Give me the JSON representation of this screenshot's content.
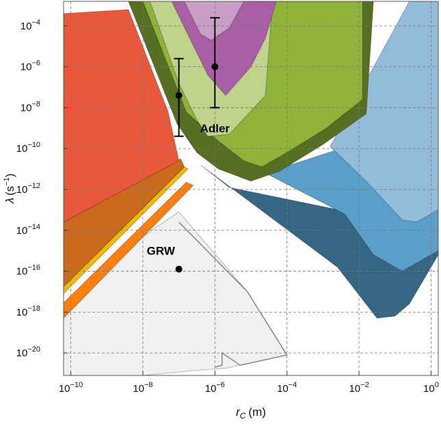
{
  "chart_data": {
    "type": "area",
    "xlabel": {
      "symbol": "r",
      "subscript": "C",
      "unit": "(m)"
    },
    "ylabel": {
      "symbol": "λ",
      "unit_open": "(s",
      "unit_exp": "−1",
      "unit_close": ")"
    },
    "x_scale": "log",
    "y_scale": "log",
    "xlim_exponents": [
      -10.2,
      0.2
    ],
    "ylim_exponents": [
      -21.1,
      -2.8
    ],
    "grid": true,
    "x_ticks": [
      {
        "base": "10",
        "exp": "−10",
        "log": -10
      },
      {
        "base": "10",
        "exp": "−8",
        "log": -8
      },
      {
        "base": "10",
        "exp": "−6",
        "log": -6
      },
      {
        "base": "10",
        "exp": "−4",
        "log": -4
      },
      {
        "base": "10",
        "exp": "−2",
        "log": -2
      },
      {
        "base": "10",
        "exp": "0",
        "log": 0
      }
    ],
    "y_ticks": [
      {
        "base": "10",
        "exp": "−4",
        "log": -4
      },
      {
        "base": "10",
        "exp": "−6",
        "log": -6
      },
      {
        "base": "10",
        "exp": "−8",
        "log": -8
      },
      {
        "base": "10",
        "exp": "−10",
        "log": -10
      },
      {
        "base": "10",
        "exp": "−12",
        "log": -12
      },
      {
        "base": "10",
        "exp": "−14",
        "log": -14
      },
      {
        "base": "10",
        "exp": "−16",
        "log": -16
      },
      {
        "base": "10",
        "exp": "−18",
        "log": -18
      },
      {
        "base": "10",
        "exp": "−20",
        "log": -20
      }
    ],
    "regions": [
      {
        "color": "#f0f0f0",
        "points": [
          [
            -10.2,
            -17.55
          ],
          [
            -8.5,
            -14.9
          ],
          [
            -7.0,
            -13.1
          ],
          [
            -5.1,
            -17.0
          ],
          [
            -4.0,
            -20.1
          ],
          [
            -5.7,
            -20.75
          ],
          [
            -6.5,
            -20.85
          ],
          [
            -8,
            -21.1
          ],
          [
            -10.2,
            -21.1
          ]
        ]
      },
      {
        "color": "#ff7f0e",
        "points": [
          [
            -10.2,
            -17.55
          ],
          [
            -6.8,
            -11.65
          ],
          [
            -6.6,
            -11.8
          ],
          [
            -10.2,
            -18.3
          ]
        ]
      },
      {
        "color": "#f2b705",
        "points": [
          [
            -10.2,
            -16.75
          ],
          [
            -6.85,
            -10.9
          ],
          [
            -6.75,
            -11.0
          ],
          [
            -10.2,
            -17.1
          ]
        ]
      },
      {
        "color": "#c96a1c",
        "points": [
          [
            -10.2,
            -16.75
          ],
          [
            -6.85,
            -10.9
          ],
          [
            -6.95,
            -10.5
          ],
          [
            -10.2,
            -13.6
          ]
        ]
      },
      {
        "color": "#e8583a",
        "points": [
          [
            -10.2,
            -13.6
          ],
          [
            -7.0,
            -10.6
          ],
          [
            -7.3,
            -8.2
          ],
          [
            -8.4,
            -3.2
          ],
          [
            -10.2,
            -3.4
          ]
        ]
      },
      {
        "color": "#356785",
        "points": [
          [
            -6.4,
            -10.8
          ],
          [
            -2.6,
            -15.8
          ],
          [
            -1.5,
            -18.3
          ],
          [
            -1.0,
            -18.2
          ],
          [
            -0.6,
            -17.6
          ],
          [
            0.2,
            -15.2
          ],
          [
            0.2,
            -14.0
          ],
          [
            -5.6,
            -11.9
          ]
        ]
      },
      {
        "color": "#5a9fcb",
        "points": [
          [
            -4.6,
            -11.2
          ],
          [
            -2.4,
            -13.2
          ],
          [
            -1.6,
            -15.2
          ],
          [
            -0.8,
            -16.0
          ],
          [
            0.2,
            -15.0
          ],
          [
            0.2,
            -12.0
          ],
          [
            -2.5,
            -10.0
          ]
        ]
      },
      {
        "color": "#93bcda",
        "points": [
          [
            -2.8,
            -9.9
          ],
          [
            -1.8,
            -11.6
          ],
          [
            -0.8,
            -13.5
          ],
          [
            -0.4,
            -13.6
          ],
          [
            0.2,
            -13.0
          ],
          [
            0.2,
            -2.8
          ],
          [
            -0.6,
            -2.8
          ]
        ]
      },
      {
        "color": "#566f22",
        "points": [
          [
            -8.4,
            -2.8
          ],
          [
            -7.05,
            -8.8
          ],
          [
            -6.5,
            -10.2
          ],
          [
            -5.9,
            -11.0
          ],
          [
            -5.0,
            -11.6
          ],
          [
            -4.2,
            -11.1
          ],
          [
            -3.0,
            -9.8
          ],
          [
            -1.8,
            -8.3
          ],
          [
            -1.6,
            -2.8
          ]
        ]
      },
      {
        "color": "#8eb23a",
        "points": [
          [
            -8.0,
            -2.8
          ],
          [
            -6.8,
            -8.2
          ],
          [
            -6.0,
            -9.5
          ],
          [
            -5.2,
            -10.6
          ],
          [
            -4.7,
            -10.9
          ],
          [
            -4.0,
            -10.2
          ],
          [
            -2.9,
            -9.0
          ],
          [
            -1.9,
            -7.6
          ],
          [
            -1.9,
            -2.8
          ]
        ]
      },
      {
        "color": "#bfd38c",
        "points": [
          [
            -7.8,
            -2.8
          ],
          [
            -7.0,
            -6.8
          ],
          [
            -6.5,
            -8.6
          ],
          [
            -6.2,
            -9.4
          ],
          [
            -5.6,
            -9.3
          ],
          [
            -4.6,
            -7.4
          ],
          [
            -4.4,
            -2.8
          ]
        ]
      },
      {
        "color": "#a95fa5",
        "points": [
          [
            -7.2,
            -2.8
          ],
          [
            -6.7,
            -4.6
          ],
          [
            -6.2,
            -6.4
          ],
          [
            -5.7,
            -7.4
          ],
          [
            -5.0,
            -6.0
          ],
          [
            -4.6,
            -4.6
          ],
          [
            -4.3,
            -2.8
          ]
        ]
      },
      {
        "color": "#c99ec6",
        "points": [
          [
            -6.85,
            -2.8
          ],
          [
            -6.4,
            -4.4
          ],
          [
            -6.1,
            -4.7
          ],
          [
            -5.6,
            -4.1
          ],
          [
            -5.2,
            -2.8
          ]
        ]
      }
    ],
    "outlines": [
      {
        "color": "#777777",
        "points": [
          [
            -7.0,
            -13.6
          ],
          [
            -5.1,
            -17.0
          ],
          [
            -4.0,
            -20.1
          ],
          [
            -5.3,
            -20.6
          ],
          [
            -5.8,
            -20.0
          ],
          [
            -5.8,
            -20.6
          ],
          [
            -6.0,
            -20.7
          ]
        ]
      }
    ],
    "error_points": [
      {
        "x_log": -7.0,
        "y_log": -7.4,
        "y_low_log": -9.4,
        "y_high_log": -5.6
      },
      {
        "x_log": -6.0,
        "y_log": -6.0,
        "y_low_log": -8.0,
        "y_high_log": -3.6
      }
    ],
    "points": [
      {
        "x_log": -7.0,
        "y_log": -15.9
      }
    ],
    "annotations": [
      {
        "text": "Adler",
        "x_log": -6.0,
        "y_log": -9.2
      },
      {
        "text": "GRW",
        "x_log": -7.5,
        "y_log": -15.2
      }
    ]
  }
}
